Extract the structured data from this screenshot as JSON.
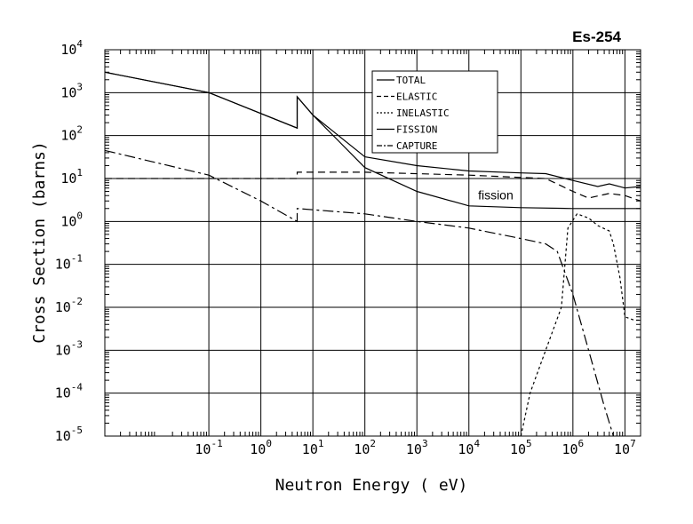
{
  "chart_data": {
    "type": "line",
    "title": "Es-254",
    "xlabel": "Neutron Energy ( eV)",
    "ylabel": "Cross Section (barns)",
    "x_scale": "log",
    "y_scale": "log",
    "xlim": [
      0.001,
      20000000
    ],
    "ylim": [
      1e-05,
      10000
    ],
    "grid": true,
    "legend_position": "top-center",
    "x_ticks": [
      {
        "base": "10",
        "exp": "-1",
        "value": 0.1
      },
      {
        "base": "10",
        "exp": "0",
        "value": 1
      },
      {
        "base": "10",
        "exp": "1",
        "value": 10
      },
      {
        "base": "10",
        "exp": "2",
        "value": 100
      },
      {
        "base": "10",
        "exp": "3",
        "value": 1000
      },
      {
        "base": "10",
        "exp": "4",
        "value": 10000
      },
      {
        "base": "10",
        "exp": "5",
        "value": 100000
      },
      {
        "base": "10",
        "exp": "6",
        "value": 1000000
      },
      {
        "base": "10",
        "exp": "7",
        "value": 10000000
      }
    ],
    "y_ticks": [
      {
        "base": "10",
        "exp": "4",
        "value": 10000
      },
      {
        "base": "10",
        "exp": "3",
        "value": 1000
      },
      {
        "base": "10",
        "exp": "2",
        "value": 100
      },
      {
        "base": "10",
        "exp": "1",
        "value": 10
      },
      {
        "base": "10",
        "exp": "0",
        "value": 1
      },
      {
        "base": "10",
        "exp": "-1",
        "value": 0.1
      },
      {
        "base": "10",
        "exp": "-2",
        "value": 0.01
      },
      {
        "base": "10",
        "exp": "-3",
        "value": 0.001
      },
      {
        "base": "10",
        "exp": "-4",
        "value": 0.0001
      },
      {
        "base": "10",
        "exp": "-5",
        "value": 1e-05
      }
    ],
    "annotations": [
      {
        "text": "fission",
        "x": 15000,
        "y": 3.3
      }
    ],
    "series": [
      {
        "name": "TOTAL",
        "dash": "solid",
        "points": [
          [
            0.001,
            3000
          ],
          [
            0.1,
            1000
          ],
          [
            5,
            150
          ],
          [
            5,
            800
          ],
          [
            10,
            300
          ],
          [
            100,
            32
          ],
          [
            1000,
            20
          ],
          [
            10000,
            15
          ],
          [
            100000,
            13.5
          ],
          [
            300000,
            13
          ],
          [
            1000000,
            9
          ],
          [
            3000000,
            6.5
          ],
          [
            5000000,
            7.5
          ],
          [
            10000000,
            6
          ],
          [
            20000000,
            6.5
          ]
        ]
      },
      {
        "name": "ELASTIC",
        "dash": "8 5",
        "points": [
          [
            0.001,
            10
          ],
          [
            5,
            10
          ],
          [
            5,
            14
          ],
          [
            100,
            14
          ],
          [
            10000,
            12
          ],
          [
            300000,
            10
          ],
          [
            1000000,
            5
          ],
          [
            2000000,
            3.5
          ],
          [
            5000000,
            4.5
          ],
          [
            10000000,
            4
          ],
          [
            20000000,
            3
          ]
        ]
      },
      {
        "name": "INELASTIC",
        "dash": "3 3",
        "points": [
          [
            100000,
            1e-05
          ],
          [
            150000,
            0.0001
          ],
          [
            300000,
            0.001
          ],
          [
            600000,
            0.01
          ],
          [
            800000,
            0.7
          ],
          [
            1200000,
            1.5
          ],
          [
            2000000,
            1.2
          ],
          [
            3000000,
            0.8
          ],
          [
            5000000,
            0.6
          ],
          [
            6000000,
            0.3
          ],
          [
            8000000,
            0.05
          ],
          [
            10000000,
            0.006
          ],
          [
            15000000,
            0.005
          ],
          [
            20000000,
            0.005
          ]
        ]
      },
      {
        "name": "FISSION",
        "dash": "solid",
        "points": [
          [
            0.001,
            3000
          ],
          [
            0.1,
            1000
          ],
          [
            5,
            150
          ],
          [
            5,
            800
          ],
          [
            10,
            300
          ],
          [
            100,
            18
          ],
          [
            1000,
            5
          ],
          [
            10000,
            2.3
          ],
          [
            100000,
            2.1
          ],
          [
            1000000,
            2
          ],
          [
            10000000,
            2
          ],
          [
            20000000,
            2
          ]
        ]
      },
      {
        "name": "CAPTURE",
        "dash": "12 4 3 4",
        "points": [
          [
            0.001,
            45
          ],
          [
            0.1,
            12
          ],
          [
            1,
            3
          ],
          [
            5,
            1
          ],
          [
            5,
            2
          ],
          [
            100,
            1.5
          ],
          [
            1000,
            1
          ],
          [
            10000,
            0.7
          ],
          [
            100000,
            0.4
          ],
          [
            300000,
            0.3
          ],
          [
            500000,
            0.2
          ],
          [
            1000000,
            0.02
          ],
          [
            2000000,
            0.001
          ],
          [
            4000000,
            5e-05
          ],
          [
            6000000,
            1e-05
          ]
        ]
      }
    ]
  }
}
